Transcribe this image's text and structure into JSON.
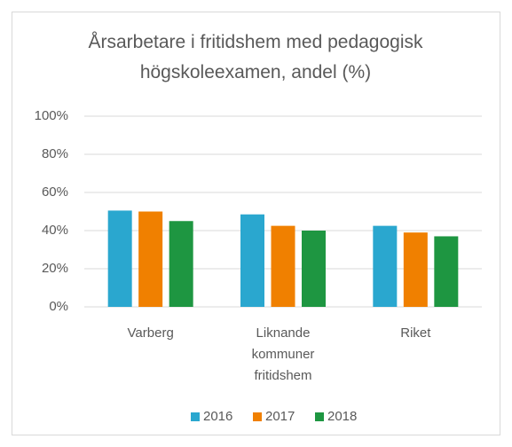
{
  "chart_data": {
    "type": "bar",
    "title": "Årsarbetare i fritidshem med pedagogisk högskoleexamen, andel (%)",
    "categories": [
      "Varberg",
      "Liknande kommuner fritidshem",
      "Riket"
    ],
    "series": [
      {
        "name": "2016",
        "color": "#2aa7cf",
        "values": [
          50.5,
          48.5,
          42.5
        ]
      },
      {
        "name": "2017",
        "color": "#f08000",
        "values": [
          50,
          42.5,
          39
        ]
      },
      {
        "name": "2018",
        "color": "#1e9641",
        "values": [
          45,
          40,
          37
        ]
      }
    ],
    "ylim": [
      0,
      100
    ],
    "yticks": [
      {
        "value": 0,
        "label": "0%"
      },
      {
        "value": 20,
        "label": "20%"
      },
      {
        "value": 40,
        "label": "40%"
      },
      {
        "value": 60,
        "label": "60%"
      },
      {
        "value": 80,
        "label": "80%"
      },
      {
        "value": 100,
        "label": "100%"
      }
    ],
    "grid": true,
    "legend": "bottom"
  }
}
